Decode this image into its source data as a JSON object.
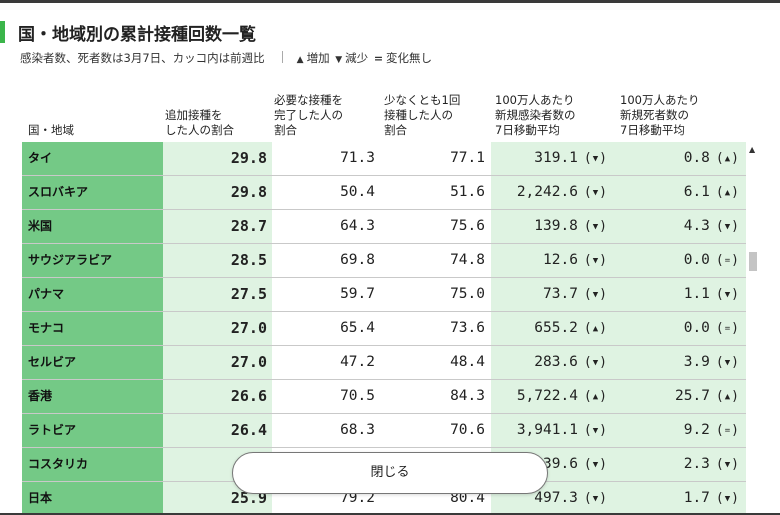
{
  "header": {
    "title": "国・地域別の累計接種回数一覧",
    "subtitle": "感染者数、死者数は3月7日、カッコ内は前週比",
    "legend": [
      {
        "symbol": "▲",
        "label": "増加"
      },
      {
        "symbol": "▼",
        "label": "減少"
      },
      {
        "symbol": "=",
        "label": "変化無し"
      }
    ]
  },
  "columns": [
    "国・地域",
    "追加接種を\nした人の割合",
    "必要な接種を\n完了した人の\n割合",
    "少なくとも1回\n接種した人の\n割合",
    "100万人あたり\n新規感染者数の\n7日移動平均",
    "100万人あたり\n新規死者数の\n7日移動平均"
  ],
  "rows": [
    {
      "name": "タイ",
      "booster": "29.8",
      "full": "71.3",
      "once": "77.1",
      "cases": "319.1",
      "cases_trend": "▼",
      "deaths": "0.8",
      "deaths_trend": "▲"
    },
    {
      "name": "スロバキア",
      "booster": "29.8",
      "full": "50.4",
      "once": "51.6",
      "cases": "2,242.6",
      "cases_trend": "▼",
      "deaths": "6.1",
      "deaths_trend": "▲"
    },
    {
      "name": "米国",
      "booster": "28.7",
      "full": "64.3",
      "once": "75.6",
      "cases": "139.8",
      "cases_trend": "▼",
      "deaths": "4.3",
      "deaths_trend": "▼"
    },
    {
      "name": "サウジアラビア",
      "booster": "28.5",
      "full": "69.8",
      "once": "74.8",
      "cases": "12.6",
      "cases_trend": "▼",
      "deaths": "0.0",
      "deaths_trend": "="
    },
    {
      "name": "パナマ",
      "booster": "27.5",
      "full": "59.7",
      "once": "75.0",
      "cases": "73.7",
      "cases_trend": "▼",
      "deaths": "1.1",
      "deaths_trend": "▼"
    },
    {
      "name": "モナコ",
      "booster": "27.0",
      "full": "65.4",
      "once": "73.6",
      "cases": "655.2",
      "cases_trend": "▲",
      "deaths": "0.0",
      "deaths_trend": "="
    },
    {
      "name": "セルビア",
      "booster": "27.0",
      "full": "47.2",
      "once": "48.4",
      "cases": "283.6",
      "cases_trend": "▼",
      "deaths": "3.9",
      "deaths_trend": "▼"
    },
    {
      "name": "香港",
      "booster": "26.6",
      "full": "70.5",
      "once": "84.3",
      "cases": "5,722.4",
      "cases_trend": "▲",
      "deaths": "25.7",
      "deaths_trend": "▲"
    },
    {
      "name": "ラトビア",
      "booster": "26.4",
      "full": "68.3",
      "once": "70.6",
      "cases": "3,941.1",
      "cases_trend": "▼",
      "deaths": "9.2",
      "deaths_trend": "="
    },
    {
      "name": "コスタリカ",
      "booster": "",
      "full": "",
      "once": "",
      "cases": "39.6",
      "cases_trend": "▼",
      "deaths": "2.3",
      "deaths_trend": "▼"
    },
    {
      "name": "日本",
      "booster": "25.9",
      "full": "79.2",
      "once": "80.4",
      "cases": "497.3",
      "cases_trend": "▼",
      "deaths": "1.7",
      "deaths_trend": "▼"
    }
  ],
  "scroll_up_icon": "▲",
  "close_button": {
    "label": "閉じる"
  },
  "colors": {
    "accent": "#3bb54a",
    "name_col": "#74c986",
    "highlight_col": "#dff3e2"
  }
}
